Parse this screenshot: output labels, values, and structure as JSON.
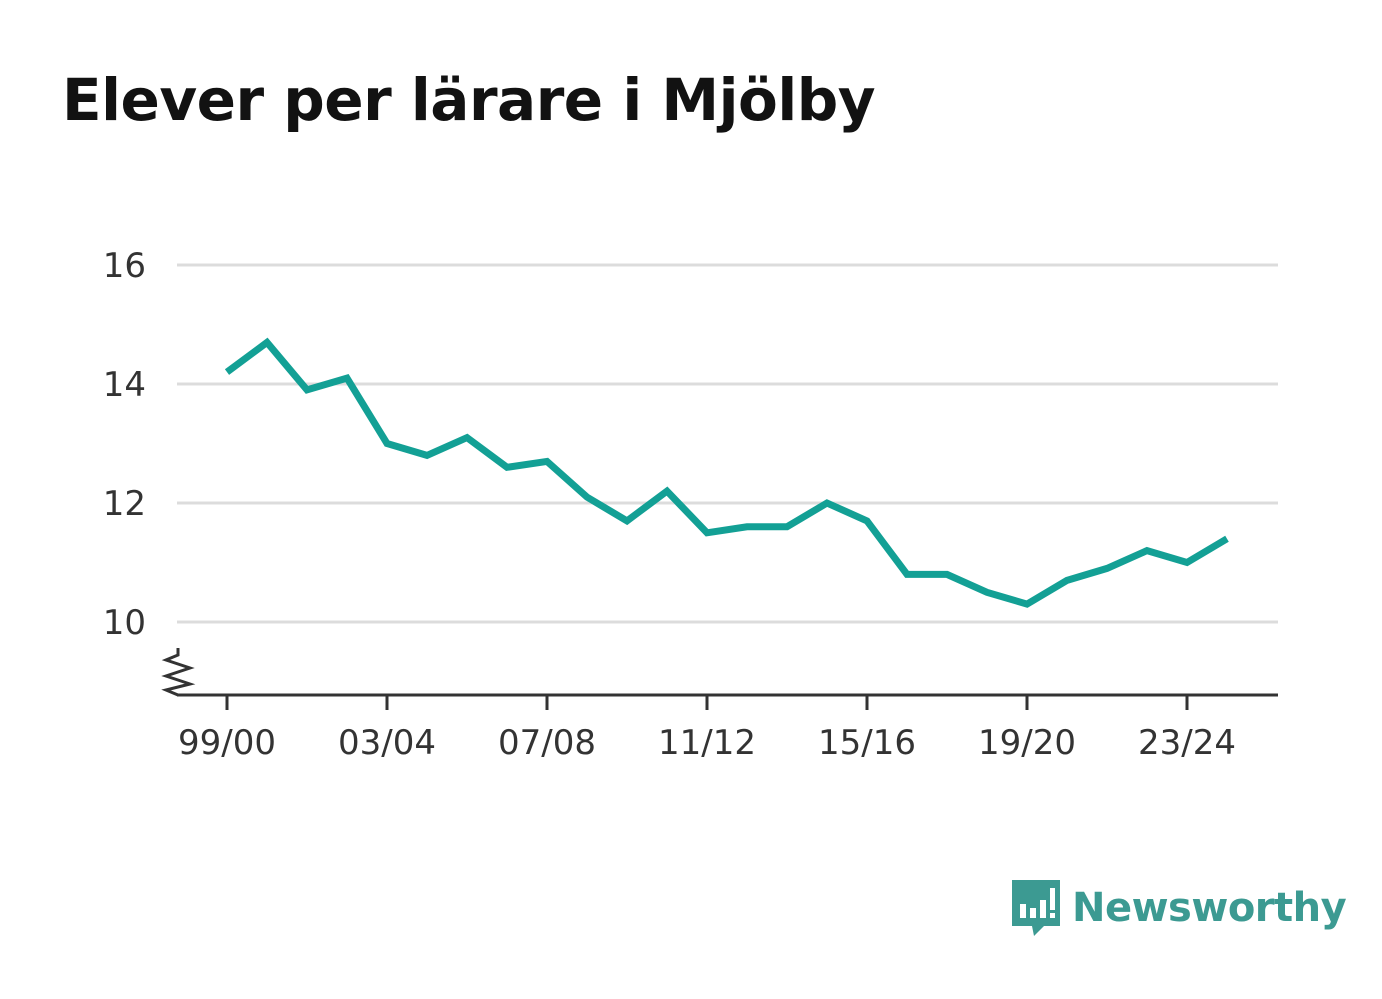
{
  "title": "Elever per lärare i Mjölby",
  "brand": {
    "name": "Newsworthy",
    "icon": "newsworthy-bar-chart-bubble-icon",
    "color": "#3c9a92"
  },
  "chart_data": {
    "type": "line",
    "title": "Elever per lärare i Mjölby",
    "xlabel": "",
    "ylabel": "",
    "x": [
      "99/00",
      "00/01",
      "01/02",
      "02/03",
      "03/04",
      "04/05",
      "05/06",
      "06/07",
      "07/08",
      "08/09",
      "09/10",
      "10/11",
      "11/12",
      "12/13",
      "13/14",
      "14/15",
      "15/16",
      "16/17",
      "17/18",
      "18/19",
      "19/20",
      "20/21",
      "21/22",
      "22/23",
      "23/24",
      "24/25"
    ],
    "x_tick_labels": [
      "99/00",
      "03/04",
      "07/08",
      "11/12",
      "15/16",
      "19/20",
      "23/24"
    ],
    "series": [
      {
        "color": "#13a095",
        "values": [
          14.2,
          14.7,
          13.9,
          14.1,
          13.0,
          12.8,
          13.1,
          12.6,
          12.7,
          12.1,
          11.7,
          12.2,
          11.5,
          11.6,
          11.6,
          12.0,
          11.7,
          10.8,
          10.8,
          10.5,
          10.3,
          10.7,
          10.9,
          11.2,
          11.0,
          11.4
        ]
      }
    ],
    "y_ticks": [
      10,
      12,
      14,
      16
    ],
    "ylim": [
      8.8,
      16
    ],
    "y_axis_break": true,
    "grid": true,
    "legend": "none"
  }
}
